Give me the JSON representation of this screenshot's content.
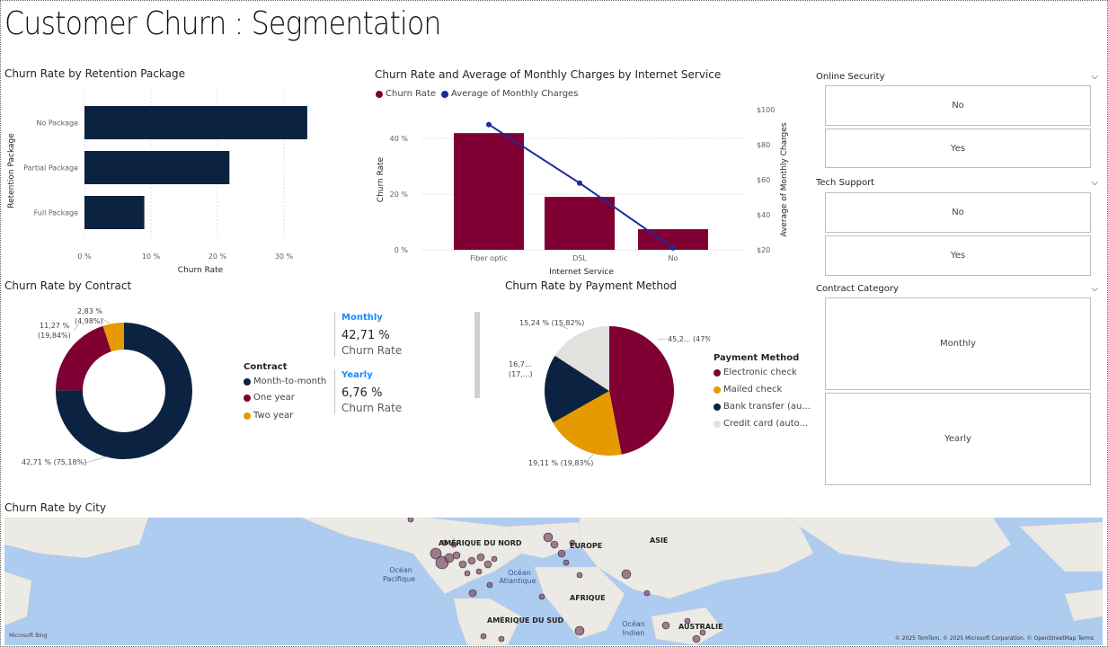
{
  "page_title": "Customer Churn : Segmentation",
  "colors": {
    "navy": "#0b2341",
    "maroon": "#800033",
    "orange": "#e69a00",
    "lightgray": "#e1e1de",
    "line": "#1a2b9c",
    "accent": "#118dff"
  },
  "retention": {
    "title": "Churn Rate by Retention Package",
    "ylabel": "Retention Package",
    "xlabel": "Churn Rate",
    "ticks": [
      "0 %",
      "10 %",
      "20 %",
      "30 %"
    ],
    "categories": [
      "No Package",
      "Partial Package",
      "Full Package"
    ]
  },
  "internet": {
    "title": "Churn Rate and Average of Monthly Charges by Internet Service",
    "legend_churn": "Churn Rate",
    "legend_avg": "Average of Monthly Charges",
    "ylabel_left": "Churn Rate",
    "ylabel_right": "Average of Monthly Charges",
    "xlabel": "Internet Service",
    "left_ticks": [
      "0 %",
      "20 %",
      "40 %"
    ],
    "right_ticks": [
      "$20",
      "$40",
      "$60",
      "$80",
      "$100"
    ],
    "categories": [
      "Fiber optic",
      "DSL",
      "No"
    ]
  },
  "contract": {
    "title": "Churn Rate by Contract",
    "legend_title": "Contract",
    "legend": [
      "Month-to-month",
      "One year",
      "Two year"
    ],
    "labels": [
      "42,71 % (75,18%)",
      "11,27 %",
      "(19,84%)",
      "2,83 %",
      "(4,98%)"
    ]
  },
  "cards": [
    {
      "label": "Monthly",
      "value": "42,71 %",
      "sub": "Churn Rate"
    },
    {
      "label": "Yearly",
      "value": "6,76 %",
      "sub": "Churn Rate"
    }
  ],
  "payment": {
    "title": "Churn Rate by Payment Method",
    "legend_title": "Payment Method",
    "legend": [
      "Electronic check",
      "Mailed check",
      "Bank transfer (au...",
      "Credit card (auto..."
    ],
    "labels": [
      "45,2... (47%)",
      "19,11 % (19,83%)",
      "16,7...",
      "(17,...)",
      "15,24 % (15,82%)"
    ]
  },
  "slicers": {
    "online_security": {
      "title": "Online Security",
      "options": [
        "No",
        "Yes"
      ]
    },
    "tech_support": {
      "title": "Tech Support",
      "options": [
        "No",
        "Yes"
      ]
    },
    "contract_category": {
      "title": "Contract Category",
      "options": [
        "Monthly",
        "Yearly"
      ]
    }
  },
  "map": {
    "title": "Churn Rate by City",
    "labels": [
      "AMÉRIQUE DU NORD",
      "EUROPE",
      "ASIE",
      "AFRIQUE",
      "AMÉRIQUE DU SUD",
      "AUSTRALIE"
    ],
    "oceans": [
      "Océan",
      "Pacifique",
      "Océan",
      "Atlantique",
      "Océan",
      "Indien"
    ],
    "attribution": "© 2025 TomTom, © 2025 Microsoft Corporation, © OpenStreetMap  Terms",
    "bing": "Microsoft Bing"
  },
  "chart_data": [
    {
      "type": "bar",
      "title": "Churn Rate by Retention Package",
      "categories": [
        "No Package",
        "Partial Package",
        "Full Package"
      ],
      "values": [
        33.5,
        21.8,
        9.0
      ],
      "xlabel": "Churn Rate",
      "ylabel": "Retention Package",
      "xlim": [
        0,
        36
      ],
      "grid": true
    },
    {
      "type": "bar",
      "title": "Churn Rate and Average of Monthly Charges by Internet Service",
      "categories": [
        "Fiber optic",
        "DSL",
        "No"
      ],
      "series": [
        {
          "name": "Churn Rate",
          "values": [
            41.9,
            19.0,
            7.4
          ]
        },
        {
          "name": "Average of Monthly Charges",
          "type": "line",
          "values": [
            91.5,
            58.1,
            21.1
          ]
        }
      ],
      "xlabel": "Internet Service",
      "ylabel": "Churn Rate",
      "ylim": [
        0,
        50
      ],
      "y2label": "Average of Monthly Charges",
      "y2lim": [
        20,
        100
      ]
    },
    {
      "type": "pie",
      "title": "Churn Rate by Contract",
      "categories": [
        "Month-to-month",
        "One year",
        "Two year"
      ],
      "values": [
        42.71,
        11.27,
        2.83
      ],
      "shares": [
        75.18,
        19.84,
        4.98
      ]
    },
    {
      "type": "pie",
      "title": "Churn Rate by Payment Method",
      "categories": [
        "Electronic check",
        "Mailed check",
        "Bank transfer (au...",
        "Credit card (auto..."
      ],
      "values": [
        45.2,
        19.11,
        16.7,
        15.24
      ],
      "shares": [
        47,
        19.83,
        17.35,
        15.82
      ]
    }
  ]
}
